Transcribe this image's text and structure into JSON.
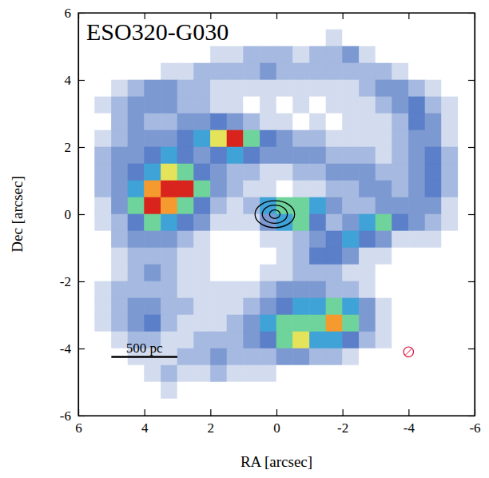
{
  "chart_data": {
    "type": "heatmap",
    "title": "ESO320-G030",
    "x_label": "RA [arcsec]",
    "y_label": "Dec [arcsec]",
    "xlim": [
      6,
      -6
    ],
    "ylim": [
      -6,
      6
    ],
    "xticks": [
      6,
      4,
      2,
      0,
      -2,
      -4,
      -6
    ],
    "yticks": [
      -6,
      -4,
      -2,
      0,
      2,
      4,
      6
    ],
    "x": [
      5.75,
      5.25,
      4.75,
      4.25,
      3.75,
      3.25,
      2.75,
      2.25,
      1.75,
      1.25,
      0.75,
      0.25,
      -0.25,
      -0.75,
      -1.25,
      -1.75,
      -2.25,
      -2.75,
      -3.25,
      -3.75,
      -4.25,
      -4.75,
      -5.25,
      -5.75
    ],
    "y": [
      5.75,
      5.25,
      4.75,
      4.25,
      3.75,
      3.25,
      2.75,
      2.25,
      1.75,
      1.25,
      0.75,
      0.25,
      -0.25,
      -0.75,
      -1.25,
      -1.75,
      -2.25,
      -2.75,
      -3.25,
      -3.75,
      -4.25,
      -4.75,
      -5.25,
      -5.75
    ],
    "z": [
      [
        0,
        0,
        0,
        0,
        0,
        0,
        0,
        0,
        0,
        0,
        0,
        0,
        0,
        0,
        0,
        0,
        0,
        0,
        0,
        0,
        0,
        0,
        0,
        0
      ],
      [
        0,
        0,
        0,
        0,
        0,
        0,
        0,
        0,
        0,
        0,
        0,
        0,
        0,
        0,
        0,
        1,
        0,
        0,
        0,
        0,
        0,
        0,
        0,
        0
      ],
      [
        0,
        0,
        0,
        0,
        0,
        0,
        0,
        0,
        1,
        1,
        2,
        2,
        2,
        1,
        2,
        2,
        3,
        1,
        0,
        0,
        0,
        0,
        0,
        0
      ],
      [
        0,
        0,
        0,
        0,
        0,
        1,
        1,
        2,
        2,
        2,
        2,
        3,
        2,
        2,
        2,
        2,
        2,
        2,
        2,
        1,
        0,
        0,
        0,
        0
      ],
      [
        0,
        0,
        1,
        2,
        3,
        3,
        2,
        2,
        1,
        1,
        1,
        1,
        1,
        1,
        1,
        1,
        1,
        2,
        3,
        3,
        2,
        1,
        0,
        0
      ],
      [
        0,
        1,
        2,
        3,
        3,
        3,
        2,
        2,
        1,
        1,
        0,
        1,
        0,
        1,
        0,
        1,
        1,
        1,
        2,
        3,
        4,
        2,
        1,
        0
      ],
      [
        0,
        0,
        2,
        3,
        2,
        2,
        3,
        3,
        4,
        3,
        2,
        1,
        1,
        0,
        1,
        0,
        1,
        1,
        1,
        2,
        4,
        3,
        1,
        0
      ],
      [
        0,
        1,
        2,
        3,
        3,
        3,
        4,
        5,
        7,
        9,
        6,
        4,
        3,
        2,
        2,
        1,
        1,
        1,
        1,
        2,
        3,
        3,
        1,
        0
      ],
      [
        0,
        2,
        3,
        3,
        4,
        5,
        4,
        3,
        4,
        5,
        4,
        3,
        3,
        3,
        3,
        2,
        2,
        2,
        1,
        2,
        3,
        4,
        2,
        0
      ],
      [
        0,
        2,
        3,
        4,
        5,
        7,
        6,
        4,
        3,
        2,
        2,
        1,
        1,
        2,
        2,
        3,
        3,
        3,
        2,
        2,
        3,
        4,
        2,
        0
      ],
      [
        0,
        2,
        3,
        5,
        8,
        9,
        9,
        6,
        3,
        2,
        1,
        1,
        0,
        1,
        1,
        2,
        2,
        3,
        3,
        2,
        3,
        4,
        2,
        0
      ],
      [
        0,
        1,
        3,
        6,
        9,
        8,
        6,
        4,
        2,
        1,
        2,
        5,
        6,
        6,
        5,
        3,
        2,
        2,
        3,
        3,
        3,
        3,
        1,
        0
      ],
      [
        0,
        1,
        2,
        4,
        6,
        5,
        4,
        3,
        1,
        1,
        1,
        3,
        5,
        6,
        4,
        2,
        3,
        5,
        6,
        4,
        3,
        2,
        1,
        0
      ],
      [
        0,
        0,
        2,
        3,
        3,
        3,
        2,
        1,
        0,
        0,
        0,
        1,
        1,
        2,
        3,
        4,
        5,
        4,
        3,
        1,
        1,
        1,
        0,
        0
      ],
      [
        0,
        0,
        1,
        2,
        2,
        2,
        1,
        1,
        0,
        0,
        0,
        0,
        1,
        2,
        4,
        4,
        3,
        1,
        1,
        0,
        0,
        0,
        0,
        0
      ],
      [
        0,
        0,
        1,
        2,
        3,
        2,
        1,
        1,
        0,
        0,
        0,
        1,
        1,
        2,
        2,
        2,
        1,
        1,
        0,
        0,
        0,
        0,
        0,
        0
      ],
      [
        0,
        1,
        2,
        2,
        2,
        2,
        1,
        1,
        1,
        1,
        1,
        2,
        3,
        3,
        3,
        2,
        2,
        1,
        0,
        0,
        0,
        0,
        0,
        0
      ],
      [
        0,
        1,
        2,
        3,
        3,
        2,
        2,
        1,
        1,
        1,
        2,
        3,
        4,
        5,
        5,
        6,
        5,
        3,
        1,
        0,
        0,
        0,
        0,
        0
      ],
      [
        0,
        1,
        2,
        3,
        4,
        2,
        1,
        1,
        1,
        2,
        3,
        5,
        6,
        6,
        6,
        8,
        6,
        3,
        1,
        0,
        0,
        0,
        0,
        0
      ],
      [
        0,
        0,
        1,
        2,
        2,
        1,
        1,
        2,
        2,
        2,
        3,
        4,
        6,
        7,
        5,
        5,
        4,
        2,
        1,
        0,
        0,
        0,
        0,
        0
      ],
      [
        0,
        0,
        0,
        1,
        1,
        1,
        2,
        2,
        3,
        2,
        2,
        2,
        3,
        3,
        2,
        2,
        1,
        0,
        0,
        0,
        0,
        0,
        0,
        0
      ],
      [
        0,
        0,
        0,
        0,
        1,
        2,
        1,
        1,
        2,
        1,
        1,
        1,
        0,
        0,
        0,
        0,
        0,
        0,
        0,
        0,
        0,
        0,
        0,
        0
      ],
      [
        0,
        0,
        0,
        0,
        0,
        1,
        0,
        0,
        0,
        0,
        0,
        0,
        0,
        0,
        0,
        0,
        0,
        0,
        0,
        0,
        0,
        0,
        0,
        0
      ],
      [
        0,
        0,
        0,
        0,
        0,
        0,
        0,
        0,
        0,
        0,
        0,
        0,
        0,
        0,
        0,
        0,
        0,
        0,
        0,
        0,
        0,
        0,
        0,
        0
      ]
    ],
    "contours": [
      {
        "x": 0.05,
        "y": 0.0,
        "rx": 0.6,
        "ry": 0.4
      },
      {
        "x": 0.05,
        "y": 0.0,
        "rx": 0.38,
        "ry": 0.27
      },
      {
        "x": 0.05,
        "y": 0.0,
        "rx": 0.16,
        "ry": 0.13
      }
    ],
    "beam": {
      "x": -4.0,
      "y": -4.1,
      "r": 0.15
    },
    "scale_bar": {
      "label": "500 pc",
      "x": [
        5,
        3
      ],
      "y": -4.25
    }
  }
}
